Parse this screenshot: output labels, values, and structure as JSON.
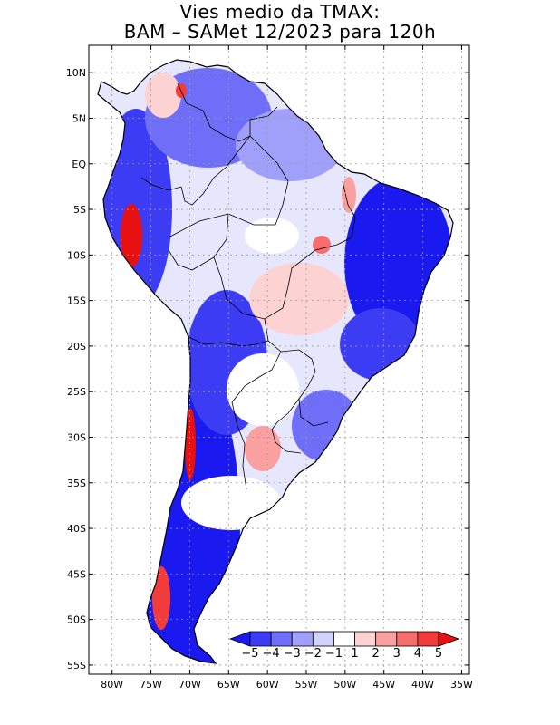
{
  "title": {
    "line1": "Vies medio da TMAX:",
    "line2": "BAM – SAMet 12/2023  para 120h"
  },
  "map": {
    "lon_range": [
      -83,
      -34
    ],
    "lat_range": [
      -56,
      13
    ],
    "lat_ticks": [
      "10N",
      "5N",
      "EQ",
      "5S",
      "10S",
      "15S",
      "20S",
      "25S",
      "30S",
      "35S",
      "40S",
      "45S",
      "50S",
      "55S"
    ],
    "lon_ticks": [
      "80W",
      "75W",
      "70W",
      "65W",
      "60W",
      "55W",
      "50W",
      "45W",
      "40W",
      "35W"
    ],
    "land_base_color": "#ffffff",
    "border_color": "#000000",
    "grid_color": "#9a9a9a"
  },
  "colorbar": {
    "labels": [
      "−5",
      "−4",
      "−3",
      "−2",
      "−1",
      "1",
      "2",
      "3",
      "4",
      "5"
    ],
    "colors": [
      "#1a1af0",
      "#3c3cf5",
      "#6e6ef8",
      "#a0a0fa",
      "#d2d2fc",
      "#ffffff",
      "#fcd2d2",
      "#faa0a0",
      "#f66e6e",
      "#f23c3c",
      "#e81010"
    ]
  }
}
